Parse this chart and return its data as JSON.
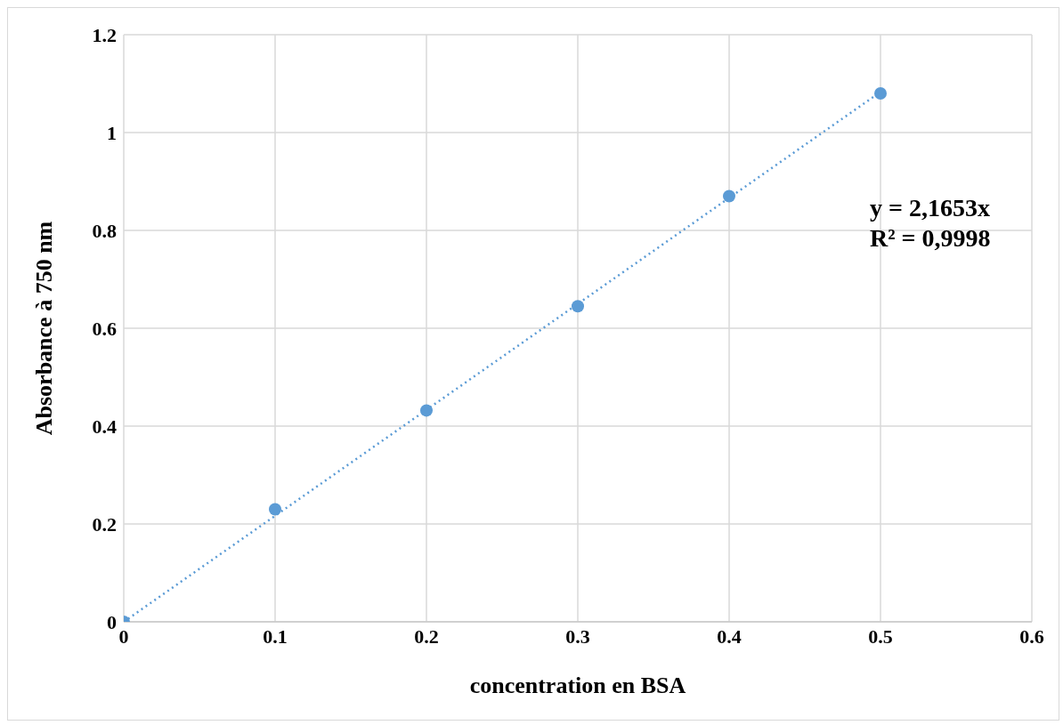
{
  "chart_data": {
    "type": "scatter",
    "xlabel": "concentration en BSA",
    "ylabel": "Absorbance à 750 nm",
    "x": [
      0,
      0.1,
      0.2,
      0.3,
      0.4,
      0.5
    ],
    "series": [
      {
        "color": "#5b9bd5",
        "values": [
          0,
          0.23,
          0.432,
          0.645,
          0.87,
          1.08
        ],
        "marker": "circle"
      },
      {
        "type": "line",
        "color": "#5b9bd5",
        "x": [
          0,
          0.5
        ],
        "values": [
          0,
          1.083
        ],
        "marker": "none",
        "line_style": "dotted"
      }
    ],
    "xlim": [
      0,
      0.6
    ],
    "xticks": [
      0,
      0.1,
      0.2,
      0.3,
      0.4,
      0.5,
      0.6
    ],
    "ylim": [
      0,
      1.2
    ],
    "yticks": [
      0,
      0.2,
      0.4,
      0.6,
      0.8,
      1,
      1.2
    ],
    "grid": true,
    "legend": false,
    "annotations": [
      "y = 2,1653x",
      "R² = 0,9998"
    ]
  }
}
